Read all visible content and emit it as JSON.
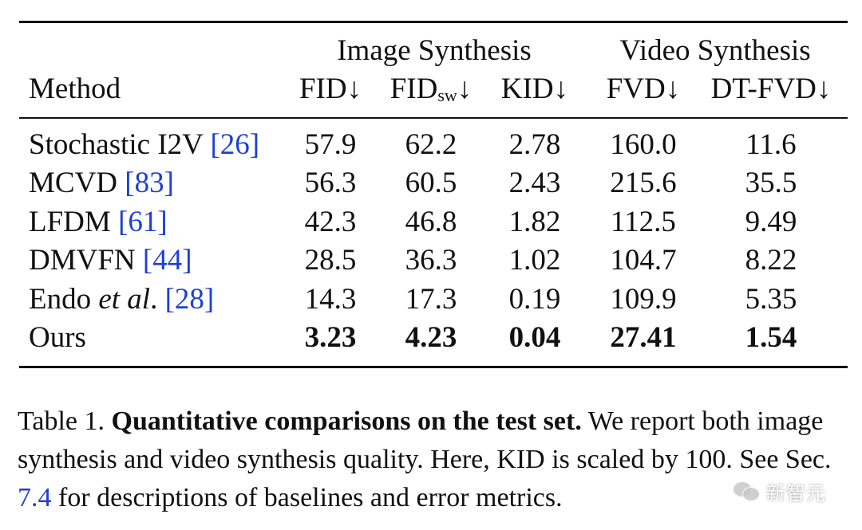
{
  "table": {
    "group_headers": {
      "image": "Image Synthesis",
      "video": "Video Synthesis"
    },
    "columns": {
      "method": "Method",
      "fid": "FID↓",
      "fidsw_main": "FID",
      "fidsw_sub": "sw",
      "fidsw_arrow": "↓",
      "kid": "KID↓",
      "fvd": "FVD↓",
      "dtfvd": "DT-FVD↓"
    },
    "rows": [
      {
        "name": "Stochastic I2V ",
        "cite": "[26]",
        "fid": "57.9",
        "fidsw": "62.2",
        "kid": "2.78",
        "fvd": "160.0",
        "dtfvd": "11.6"
      },
      {
        "name": "MCVD ",
        "cite": "[83]",
        "fid": "56.3",
        "fidsw": "60.5",
        "kid": "2.43",
        "fvd": "215.6",
        "dtfvd": "35.5"
      },
      {
        "name": "LFDM ",
        "cite": "[61]",
        "fid": "42.3",
        "fidsw": "46.8",
        "kid": "1.82",
        "fvd": "112.5",
        "dtfvd": "9.49"
      },
      {
        "name": "DMVFN ",
        "cite": "[44]",
        "fid": "28.5",
        "fidsw": "36.3",
        "kid": "1.02",
        "fvd": "104.7",
        "dtfvd": "8.22"
      },
      {
        "name_prefix": "Endo ",
        "name_italic": "et al",
        "name_suffix": ". ",
        "cite": "[28]",
        "fid": "14.3",
        "fidsw": "17.3",
        "kid": "0.19",
        "fvd": "109.9",
        "dtfvd": "5.35"
      },
      {
        "name": "Ours",
        "fid": "3.23",
        "fidsw": "4.23",
        "kid": "0.04",
        "fvd": "27.41",
        "dtfvd": "1.54"
      }
    ]
  },
  "caption": {
    "label": "Table 1. ",
    "title": "Quantitative comparisons on the test set.",
    "body1": " We report both image synthesis and video synthesis quality. Here, KID is scaled by 100. See Sec. ",
    "link": "7.4",
    "body2": " for descriptions of baselines and error metrics."
  },
  "watermark": {
    "text": "新智元"
  },
  "colors": {
    "text": "#111111",
    "citation": "#1f3fd6",
    "background": "#ffffff"
  }
}
